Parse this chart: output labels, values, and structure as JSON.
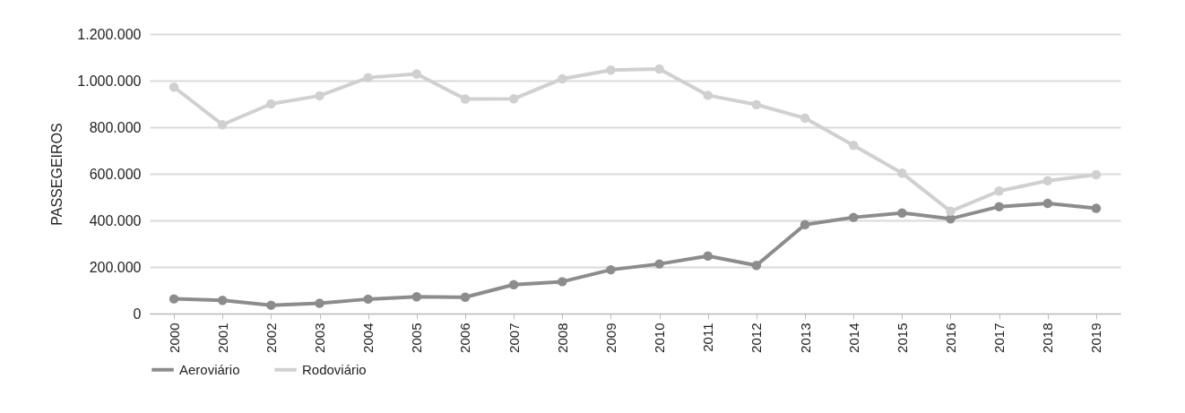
{
  "chart_data": {
    "type": "line",
    "ylabel": "PASSEGEIROS",
    "categories": [
      "2000",
      "2001",
      "2002",
      "2003",
      "2004",
      "2005",
      "2006",
      "2007",
      "2008",
      "2009",
      "2010",
      "2011",
      "2012",
      "2013",
      "2014",
      "2015",
      "2016",
      "2017",
      "2018",
      "2019"
    ],
    "series": [
      {
        "name": "Aeroviário",
        "color": "#8c8c8c",
        "values": [
          63000,
          57000,
          36000,
          44000,
          62000,
          72000,
          70000,
          124000,
          137000,
          188000,
          213000,
          247000,
          207000,
          382000,
          413000,
          432000,
          407000,
          459000,
          473000,
          452000
        ]
      },
      {
        "name": "Rodoviário",
        "color": "#d0d0d0",
        "values": [
          972000,
          811000,
          900000,
          935000,
          1013000,
          1029000,
          921000,
          922000,
          1008000,
          1045000,
          1050000,
          937000,
          897000,
          839000,
          722000,
          603000,
          439000,
          526000,
          570000,
          596000
        ]
      }
    ],
    "ylim": [
      0,
      1200000
    ],
    "yticks": [
      0,
      {
        "value": 200000,
        "label": "200.000"
      },
      {
        "value": 400000,
        "label": "400.000"
      },
      {
        "value": 600000,
        "label": "600.000"
      },
      {
        "value": 800000,
        "label": "800.000"
      },
      {
        "value": 1000000,
        "label": "1.000.000"
      },
      {
        "value": 1200000,
        "label": "1.200.000"
      }
    ],
    "grid": "y",
    "legend": "bottom",
    "marker": "circle",
    "line_style": "solid"
  }
}
